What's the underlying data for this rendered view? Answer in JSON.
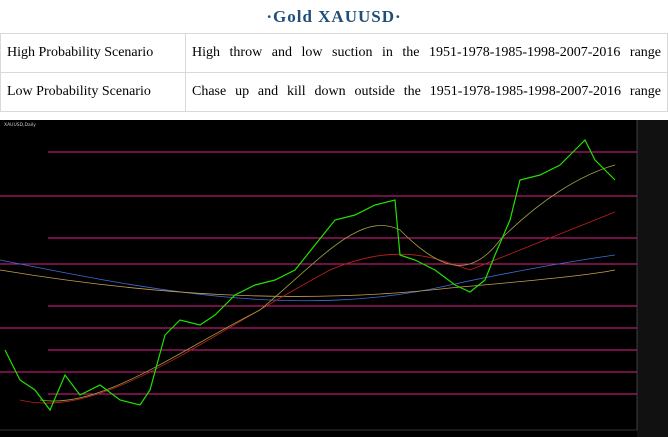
{
  "header": {
    "title": "·Gold   XAUUSD·"
  },
  "table": {
    "rows": [
      [
        "High Probability Scenario",
        "High throw and low suction in the 1951-1978-1985-1998-2007-2016 range"
      ],
      [
        "Low Probability Scenario",
        "Chase up and kill down outside the 1951-1978-1985-1998-2007-2016 range"
      ]
    ]
  },
  "chart": {
    "symbol": "XAUUSD,Daily"
  }
}
